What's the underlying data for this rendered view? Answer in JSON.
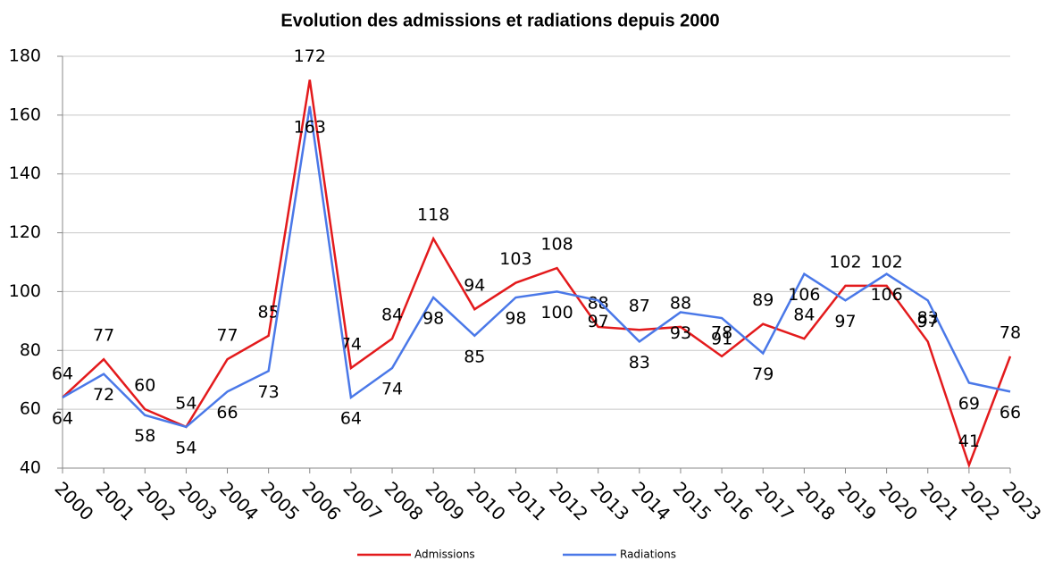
{
  "chart_data": {
    "type": "line",
    "title": "Evolution des admissions et radiations depuis 2000",
    "categories": [
      "2000",
      "2001",
      "2002",
      "2003",
      "2004",
      "2005",
      "2006",
      "2007",
      "2008",
      "2009",
      "2010",
      "2011",
      "2012",
      "2013",
      "2014",
      "2015",
      "2016",
      "2017",
      "2018",
      "2019",
      "2020",
      "2021",
      "2022",
      "2023"
    ],
    "series": [
      {
        "name": "Admissions",
        "color": "#e31a1c",
        "values": [
          64,
          77,
          60,
          54,
          77,
          85,
          172,
          74,
          84,
          118,
          94,
          103,
          108,
          88,
          87,
          88,
          78,
          89,
          84,
          102,
          102,
          83,
          41,
          78
        ]
      },
      {
        "name": "Radiations",
        "color": "#4a78e8",
        "values": [
          64,
          72,
          58,
          54,
          66,
          73,
          163,
          64,
          74,
          98,
          85,
          98,
          100,
          97,
          83,
          93,
          91,
          79,
          106,
          97,
          106,
          97,
          69,
          66
        ]
      }
    ],
    "ylim": [
      40,
      180
    ],
    "yticks": [
      40,
      60,
      80,
      100,
      120,
      140,
      160,
      180
    ],
    "grid": true,
    "legend": "bottom"
  }
}
